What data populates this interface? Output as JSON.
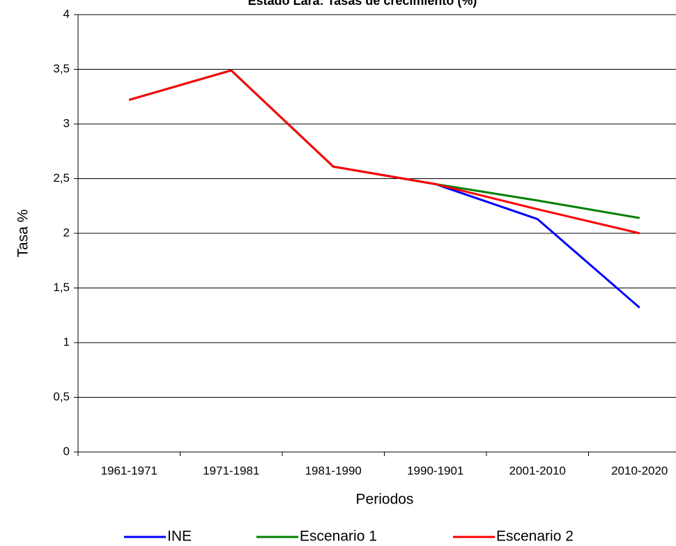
{
  "chart_data": {
    "type": "line",
    "title": "Estado Lara: Tasas de crecimiento (%)",
    "x_label": "Periodos",
    "y_label": "Tasa %",
    "categories": [
      "1961-1971",
      "1971-1981",
      "1981-1990",
      "1990-1901",
      "2001-2010",
      "2010-2020"
    ],
    "series": [
      {
        "name": "INE",
        "color": "#0000ff",
        "values": [
          3.22,
          3.49,
          2.61,
          2.45,
          2.13,
          1.32
        ]
      },
      {
        "name": "Escenario 1",
        "color": "#008000",
        "values": [
          3.22,
          3.49,
          2.61,
          2.45,
          2.3,
          2.14
        ]
      },
      {
        "name": "Escenario 2",
        "color": "#ff0000",
        "values": [
          3.22,
          3.49,
          2.61,
          2.45,
          2.22,
          2.0
        ]
      }
    ],
    "ylim": [
      0,
      4
    ],
    "yticks": [
      0,
      {
        "value": 0.5,
        "label": "0,5"
      },
      1,
      {
        "value": 1.5,
        "label": "1,5"
      },
      2,
      {
        "value": 2.5,
        "label": "2,5"
      },
      3,
      {
        "value": 3.5,
        "label": "3,5"
      },
      4
    ],
    "grid": true,
    "legend": "bottom"
  }
}
